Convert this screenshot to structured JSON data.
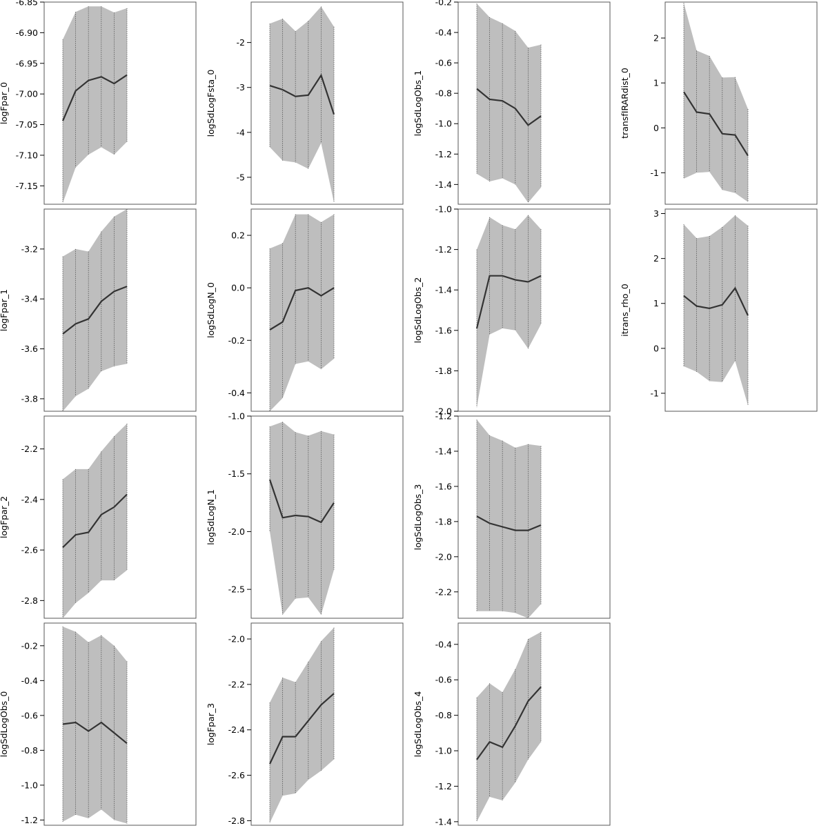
{
  "colors": {
    "band": "#bebebe",
    "line": "#333333",
    "frame": "#555555",
    "ticks": "#000000",
    "guide": "#555555"
  },
  "chart_data": [
    {
      "type": "area",
      "ylabel": "logFpar_0",
      "ylim": [
        -7.18,
        -6.85
      ],
      "yticks": [
        -6.85,
        -6.9,
        -6.95,
        -7.0,
        -7.05,
        -7.1,
        -7.15
      ],
      "ytick_labels": [
        "-6.85",
        "-6.90",
        "-6.95",
        "-7.00",
        "-7.05",
        "-7.10",
        "-7.15"
      ],
      "x": [
        1,
        2,
        3,
        4,
        5,
        6
      ],
      "values": [
        -7.044,
        -6.995,
        -6.978,
        -6.972,
        -6.983,
        -6.969
      ],
      "lower": [
        -7.178,
        -7.12,
        -7.099,
        -7.087,
        -7.099,
        -7.078
      ],
      "upper": [
        -6.911,
        -6.866,
        -6.857,
        -6.857,
        -6.867,
        -6.86
      ]
    },
    {
      "type": "area",
      "ylabel": "logSdLogFsta_0",
      "ylim": [
        -5.6,
        -1.1
      ],
      "yticks": [
        -2,
        -3,
        -4,
        -5
      ],
      "ytick_labels": [
        "-2",
        "-3",
        "-4",
        "-5"
      ],
      "x": [
        1,
        2,
        3,
        4,
        5,
        6
      ],
      "values": [
        -2.96,
        -3.05,
        -3.2,
        -3.17,
        -2.73,
        -3.6
      ],
      "lower": [
        -4.33,
        -4.63,
        -4.67,
        -4.81,
        -4.24,
        -5.56
      ],
      "upper": [
        -1.58,
        -1.47,
        -1.75,
        -1.52,
        -1.2,
        -1.65
      ]
    },
    {
      "type": "area",
      "ylabel": "logSdLogObs_1",
      "ylim": [
        -1.53,
        -0.2
      ],
      "yticks": [
        -0.2,
        -0.4,
        -0.6,
        -0.8,
        -1.0,
        -1.2,
        -1.4
      ],
      "ytick_labels": [
        "-0.2",
        "-0.4",
        "-0.6",
        "-0.8",
        "-1.0",
        "-1.2",
        "-1.4"
      ],
      "x": [
        1,
        2,
        3,
        4,
        5,
        6
      ],
      "values": [
        -0.77,
        -0.84,
        -0.85,
        -0.9,
        -1.01,
        -0.95
      ],
      "lower": [
        -1.33,
        -1.38,
        -1.36,
        -1.4,
        -1.52,
        -1.42
      ],
      "upper": [
        -0.21,
        -0.3,
        -0.34,
        -0.39,
        -0.5,
        -0.48
      ]
    },
    {
      "type": "area",
      "ylabel": "transfIRARdist_0",
      "ylim": [
        -1.7,
        2.8
      ],
      "yticks": [
        2,
        1,
        0,
        -1
      ],
      "ytick_labels": [
        "2",
        "1",
        "0",
        "-1"
      ],
      "x": [
        1,
        2,
        3,
        4,
        5,
        6
      ],
      "values": [
        0.8,
        0.35,
        0.31,
        -0.13,
        -0.16,
        -0.62
      ],
      "lower": [
        -1.13,
        -1.0,
        -0.98,
        -1.38,
        -1.45,
        -1.65
      ],
      "upper": [
        2.78,
        1.72,
        1.6,
        1.12,
        1.13,
        0.42
      ]
    },
    {
      "type": "area",
      "ylabel": "logFpar_1",
      "ylim": [
        -3.85,
        -3.04
      ],
      "yticks": [
        -3.2,
        -3.4,
        -3.6,
        -3.8
      ],
      "ytick_labels": [
        "-3.2",
        "-3.4",
        "-3.6",
        "-3.8"
      ],
      "x": [
        1,
        2,
        3,
        4,
        5,
        6
      ],
      "values": [
        -3.54,
        -3.5,
        -3.48,
        -3.41,
        -3.37,
        -3.35
      ],
      "lower": [
        -3.85,
        -3.79,
        -3.76,
        -3.69,
        -3.67,
        -3.66
      ],
      "upper": [
        -3.23,
        -3.2,
        -3.21,
        -3.13,
        -3.07,
        -3.04
      ]
    },
    {
      "type": "area",
      "ylabel": "logSdLogN_0",
      "ylim": [
        -0.47,
        0.3
      ],
      "yticks": [
        0.2,
        0.0,
        -0.2,
        -0.4
      ],
      "ytick_labels": [
        "0.2",
        "0.0",
        "-0.2",
        "-0.4"
      ],
      "x": [
        1,
        2,
        3,
        4,
        5,
        6
      ],
      "values": [
        -0.16,
        -0.13,
        -0.01,
        0.0,
        -0.03,
        0.0
      ],
      "lower": [
        -0.47,
        -0.42,
        -0.29,
        -0.28,
        -0.31,
        -0.27
      ],
      "upper": [
        0.15,
        0.17,
        0.28,
        0.28,
        0.25,
        0.28
      ]
    },
    {
      "type": "area",
      "ylabel": "logSdLogObs_2",
      "ylim": [
        -2.0,
        -1.0
      ],
      "yticks": [
        -1.0,
        -1.2,
        -1.4,
        -1.6,
        -1.8,
        -2.0
      ],
      "ytick_labels": [
        "-1.0",
        "-1.2",
        "-1.4",
        "-1.6",
        "-1.8",
        "-2.0"
      ],
      "x": [
        1,
        2,
        3,
        4,
        5,
        6
      ],
      "values": [
        -1.59,
        -1.33,
        -1.33,
        -1.35,
        -1.36,
        -1.33
      ],
      "lower": [
        -1.98,
        -1.62,
        -1.59,
        -1.6,
        -1.69,
        -1.57
      ],
      "upper": [
        -1.2,
        -1.04,
        -1.08,
        -1.1,
        -1.03,
        -1.1
      ]
    },
    {
      "type": "area",
      "ylabel": "itrans_rho_0",
      "ylim": [
        -1.4,
        3.1
      ],
      "yticks": [
        3,
        2,
        1,
        0,
        -1
      ],
      "ytick_labels": [
        "3",
        "2",
        "1",
        "0",
        "-1"
      ],
      "x": [
        1,
        2,
        3,
        4,
        5,
        6
      ],
      "values": [
        1.17,
        0.94,
        0.89,
        0.97,
        1.34,
        0.73
      ],
      "lower": [
        -0.4,
        -0.52,
        -0.73,
        -0.75,
        -0.28,
        -1.27
      ],
      "upper": [
        2.76,
        2.45,
        2.5,
        2.7,
        2.96,
        2.73
      ]
    },
    {
      "type": "area",
      "ylabel": "logFpar_2",
      "ylim": [
        -2.87,
        -2.07
      ],
      "yticks": [
        -2.2,
        -2.4,
        -2.6,
        -2.8
      ],
      "ytick_labels": [
        "-2.2",
        "-2.4",
        "-2.6",
        "-2.8"
      ],
      "x": [
        1,
        2,
        3,
        4,
        5,
        6
      ],
      "values": [
        -2.59,
        -2.54,
        -2.53,
        -2.46,
        -2.43,
        -2.38
      ],
      "lower": [
        -2.87,
        -2.81,
        -2.77,
        -2.72,
        -2.72,
        -2.68
      ],
      "upper": [
        -2.32,
        -2.28,
        -2.28,
        -2.21,
        -2.15,
        -2.1
      ]
    },
    {
      "type": "area",
      "ylabel": "logSdLogN_1",
      "ylim": [
        -2.75,
        -1.0
      ],
      "yticks": [
        -1.0,
        -1.5,
        -2.0,
        -2.5
      ],
      "ytick_labels": [
        "-1.0",
        "-1.5",
        "-2.0",
        "-2.5"
      ],
      "x": [
        1,
        2,
        3,
        4,
        5,
        6
      ],
      "values": [
        -1.55,
        -1.88,
        -1.86,
        -1.87,
        -1.92,
        -1.75
      ],
      "lower": [
        -2.0,
        -2.72,
        -2.58,
        -2.57,
        -2.72,
        -2.33
      ],
      "upper": [
        -1.09,
        -1.05,
        -1.14,
        -1.17,
        -1.13,
        -1.16
      ]
    },
    {
      "type": "area",
      "ylabel": "logSdLogObs_3",
      "ylim": [
        -2.35,
        -1.2
      ],
      "yticks": [
        -1.2,
        -1.4,
        -1.6,
        -1.8,
        -2.0,
        -2.2
      ],
      "ytick_labels": [
        "-1.2",
        "-1.4",
        "-1.6",
        "-1.8",
        "-2.0",
        "-2.2"
      ],
      "x": [
        1,
        2,
        3,
        4,
        5,
        6
      ],
      "values": [
        -1.77,
        -1.81,
        -1.83,
        -1.85,
        -1.85,
        -1.82
      ],
      "lower": [
        -2.31,
        -2.31,
        -2.31,
        -2.32,
        -2.35,
        -2.27
      ],
      "upper": [
        -1.22,
        -1.31,
        -1.34,
        -1.38,
        -1.36,
        -1.37
      ]
    },
    {
      "type": "area",
      "ylabel": "logSdLogObs_0",
      "ylim": [
        -1.23,
        -0.07
      ],
      "yticks": [
        -0.2,
        -0.4,
        -0.6,
        -0.8,
        -1.0,
        -1.2
      ],
      "ytick_labels": [
        "-0.2",
        "-0.4",
        "-0.6",
        "-0.8",
        "-1.0",
        "-1.2"
      ],
      "x": [
        1,
        2,
        3,
        4,
        5,
        6
      ],
      "values": [
        -0.65,
        -0.64,
        -0.69,
        -0.64,
        -0.7,
        -0.76
      ],
      "lower": [
        -1.21,
        -1.17,
        -1.19,
        -1.14,
        -1.2,
        -1.22
      ],
      "upper": [
        -0.09,
        -0.12,
        -0.18,
        -0.14,
        -0.2,
        -0.29
      ]
    },
    {
      "type": "area",
      "ylabel": "logFpar_3",
      "ylim": [
        -2.82,
        -1.93
      ],
      "yticks": [
        -2.0,
        -2.2,
        -2.4,
        -2.6,
        -2.8
      ],
      "ytick_labels": [
        "-2.0",
        "-2.2",
        "-2.4",
        "-2.6",
        "-2.8"
      ],
      "x": [
        1,
        2,
        3,
        4,
        5,
        6
      ],
      "values": [
        -2.55,
        -2.43,
        -2.43,
        -2.36,
        -2.29,
        -2.24
      ],
      "lower": [
        -2.81,
        -2.69,
        -2.68,
        -2.62,
        -2.58,
        -2.53
      ],
      "upper": [
        -2.28,
        -2.17,
        -2.19,
        -2.1,
        -2.01,
        -1.95
      ]
    },
    {
      "type": "area",
      "ylabel": "logSdLogObs_4",
      "ylim": [
        -1.42,
        -0.28
      ],
      "yticks": [
        -0.4,
        -0.6,
        -0.8,
        -1.0,
        -1.2,
        -1.4
      ],
      "ytick_labels": [
        "-0.4",
        "-0.6",
        "-0.8",
        "-1.0",
        "-1.2",
        "-1.4"
      ],
      "x": [
        1,
        2,
        3,
        4,
        5,
        6
      ],
      "values": [
        -1.05,
        -0.95,
        -0.98,
        -0.86,
        -0.72,
        -0.64
      ],
      "lower": [
        -1.4,
        -1.26,
        -1.28,
        -1.18,
        -1.05,
        -0.95
      ],
      "upper": [
        -0.7,
        -0.62,
        -0.67,
        -0.54,
        -0.37,
        -0.33
      ]
    }
  ]
}
